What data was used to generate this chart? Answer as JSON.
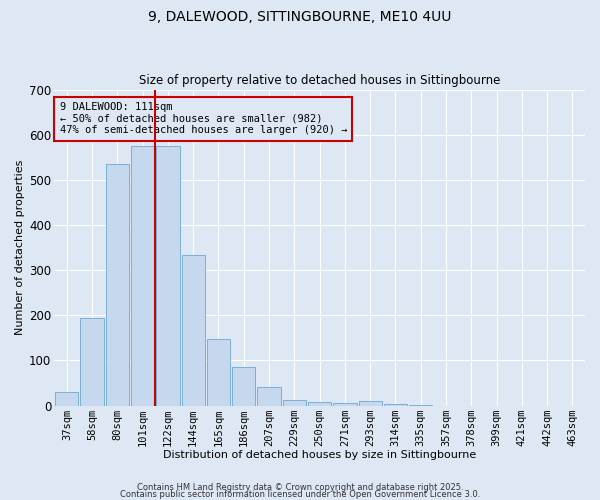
{
  "title1": "9, DALEWOOD, SITTINGBOURNE, ME10 4UU",
  "title2": "Size of property relative to detached houses in Sittingbourne",
  "xlabel": "Distribution of detached houses by size in Sittingbourne",
  "ylabel": "Number of detached properties",
  "categories": [
    "37sqm",
    "58sqm",
    "80sqm",
    "101sqm",
    "122sqm",
    "144sqm",
    "165sqm",
    "186sqm",
    "207sqm",
    "229sqm",
    "250sqm",
    "271sqm",
    "293sqm",
    "314sqm",
    "335sqm",
    "357sqm",
    "378sqm",
    "399sqm",
    "421sqm",
    "442sqm",
    "463sqm"
  ],
  "values": [
    30,
    193,
    535,
    575,
    575,
    333,
    148,
    85,
    40,
    13,
    8,
    5,
    10,
    4,
    1,
    0,
    0,
    0,
    0,
    0,
    0
  ],
  "bar_color": "#c5d8ee",
  "bar_edge_color": "#7aafd4",
  "vline_color": "#cc0000",
  "annotation_title": "9 DALEWOOD: 111sqm",
  "annotation_line1": "← 50% of detached houses are smaller (982)",
  "annotation_line2": "47% of semi-detached houses are larger (920) →",
  "annotation_box_color": "#cc0000",
  "ylim": [
    0,
    700
  ],
  "yticks": [
    0,
    100,
    200,
    300,
    400,
    500,
    600,
    700
  ],
  "footer1": "Contains HM Land Registry data © Crown copyright and database right 2025.",
  "footer2": "Contains public sector information licensed under the Open Government Licence 3.0.",
  "background_color": "#dde8f4",
  "plot_bg_color": "#dde8f4",
  "grid_color": "#ffffff"
}
